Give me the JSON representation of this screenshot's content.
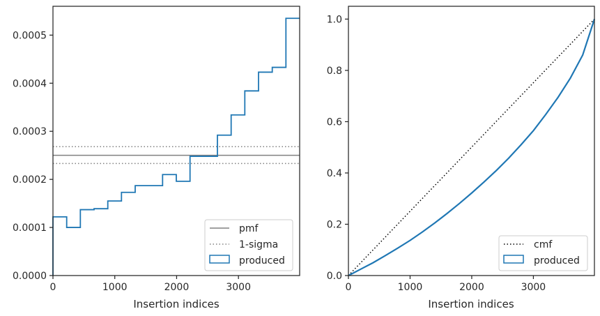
{
  "chart_data": [
    {
      "type": "line",
      "xlabel": "Insertion indices",
      "ylabel": "",
      "xlim": [
        0,
        3990
      ],
      "ylim": [
        0,
        0.00056
      ],
      "xticks": [
        0,
        1000,
        2000,
        3000
      ],
      "xtick_labels": [
        "0",
        "1000",
        "2000",
        "3000"
      ],
      "yticks": [
        0,
        0.0001,
        0.0002,
        0.0003,
        0.0004,
        0.0005
      ],
      "ytick_labels": [
        "0.0000",
        "0.0001",
        "0.0002",
        "0.0003",
        "0.0004",
        "0.0005"
      ],
      "grid": false,
      "legend_position": "bottom-right",
      "series": [
        {
          "name": "pmf",
          "style": "solid",
          "color": "#808080",
          "y": 0.00025
        },
        {
          "name": "1-sigma",
          "style": "dotted",
          "color": "#808080",
          "y": [
            0.000233,
            0.000268
          ]
        },
        {
          "name": "produced",
          "style": "step",
          "color": "#1f77b4",
          "bin_edges": [
            0,
            222,
            443,
            665,
            887,
            1108,
            1330,
            1552,
            1773,
            1995,
            2217,
            2438,
            2660,
            2882,
            3103,
            3325,
            3547,
            3768,
            3990
          ],
          "values": [
            0.000122,
            0.0001,
            0.000137,
            0.000139,
            0.000155,
            0.000173,
            0.000187,
            0.000187,
            0.00021,
            0.000196,
            0.000248,
            0.000248,
            0.000292,
            0.000334,
            0.000384,
            0.000423,
            0.000433,
            0.000535
          ]
        }
      ]
    },
    {
      "type": "line",
      "xlabel": "Insertion indices",
      "ylabel": "",
      "xlim": [
        0,
        3990
      ],
      "ylim": [
        0,
        1.05
      ],
      "xticks": [
        0,
        1000,
        2000,
        3000
      ],
      "xtick_labels": [
        "0",
        "1000",
        "2000",
        "3000"
      ],
      "yticks": [
        0,
        0.2,
        0.4,
        0.6,
        0.8,
        1.0
      ],
      "ytick_labels": [
        "0.0",
        "0.2",
        "0.4",
        "0.6",
        "0.8",
        "1.0"
      ],
      "grid": false,
      "legend_position": "bottom-right",
      "series": [
        {
          "name": "cmf",
          "style": "dotted",
          "color": "#000000",
          "x": [
            0,
            3990
          ],
          "y": [
            0,
            1.0
          ]
        },
        {
          "name": "produced",
          "style": "line",
          "color": "#1f77b4",
          "x": [
            0,
            200,
            400,
            600,
            800,
            1000,
            1200,
            1400,
            1600,
            1800,
            2000,
            2200,
            2400,
            2600,
            2800,
            3000,
            3200,
            3400,
            3600,
            3800,
            3990
          ],
          "y": [
            0,
            0.025,
            0.05,
            0.078,
            0.107,
            0.137,
            0.17,
            0.205,
            0.242,
            0.281,
            0.322,
            0.365,
            0.41,
            0.458,
            0.51,
            0.565,
            0.628,
            0.695,
            0.77,
            0.86,
            1.0
          ]
        }
      ]
    }
  ]
}
